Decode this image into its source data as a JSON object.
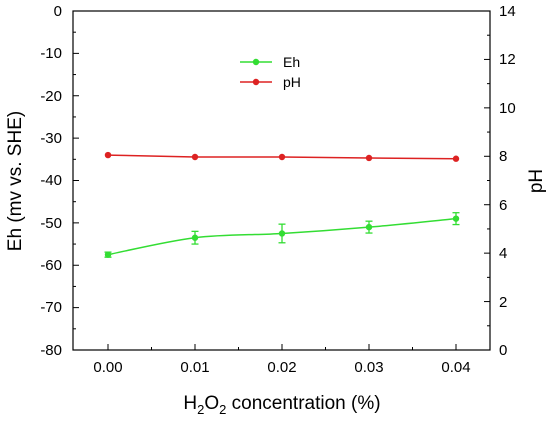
{
  "chart_data": {
    "type": "line",
    "x": [
      0.0,
      0.01,
      0.02,
      0.03,
      0.04
    ],
    "x_tick_labels": [
      "0.00",
      "0.01",
      "0.02",
      "0.03",
      "0.04"
    ],
    "xlabel": {
      "prefix": "H",
      "sub1": "2",
      "mid": "O",
      "sub2": "2",
      "suffix": " concentration (%)"
    },
    "ylabel_left": "Eh (mv vs. SHE)",
    "ylabel_right": "pH",
    "ylim_left": [
      -80,
      0
    ],
    "ylim_right": [
      0,
      14
    ],
    "y_left_ticks": [
      "0",
      "-10",
      "-20",
      "-30",
      "-40",
      "-50",
      "-60",
      "-70",
      "-80"
    ],
    "y_right_ticks": [
      "14",
      "12",
      "10",
      "8",
      "6",
      "4",
      "2",
      "0"
    ],
    "grid": false,
    "legend_position": "top-center",
    "series": [
      {
        "name": "Eh",
        "axis": "left",
        "color": "#33dd33",
        "values": [
          -57.5,
          -53.5,
          -52.5,
          -51.0,
          -49.0
        ],
        "errors": [
          0.6,
          1.5,
          2.2,
          1.4,
          1.4
        ]
      },
      {
        "name": "pH",
        "axis": "right",
        "color": "#dd2222",
        "values": [
          8.05,
          7.97,
          7.97,
          7.93,
          7.9
        ],
        "errors": [
          0,
          0,
          0,
          0,
          0
        ]
      }
    ]
  }
}
